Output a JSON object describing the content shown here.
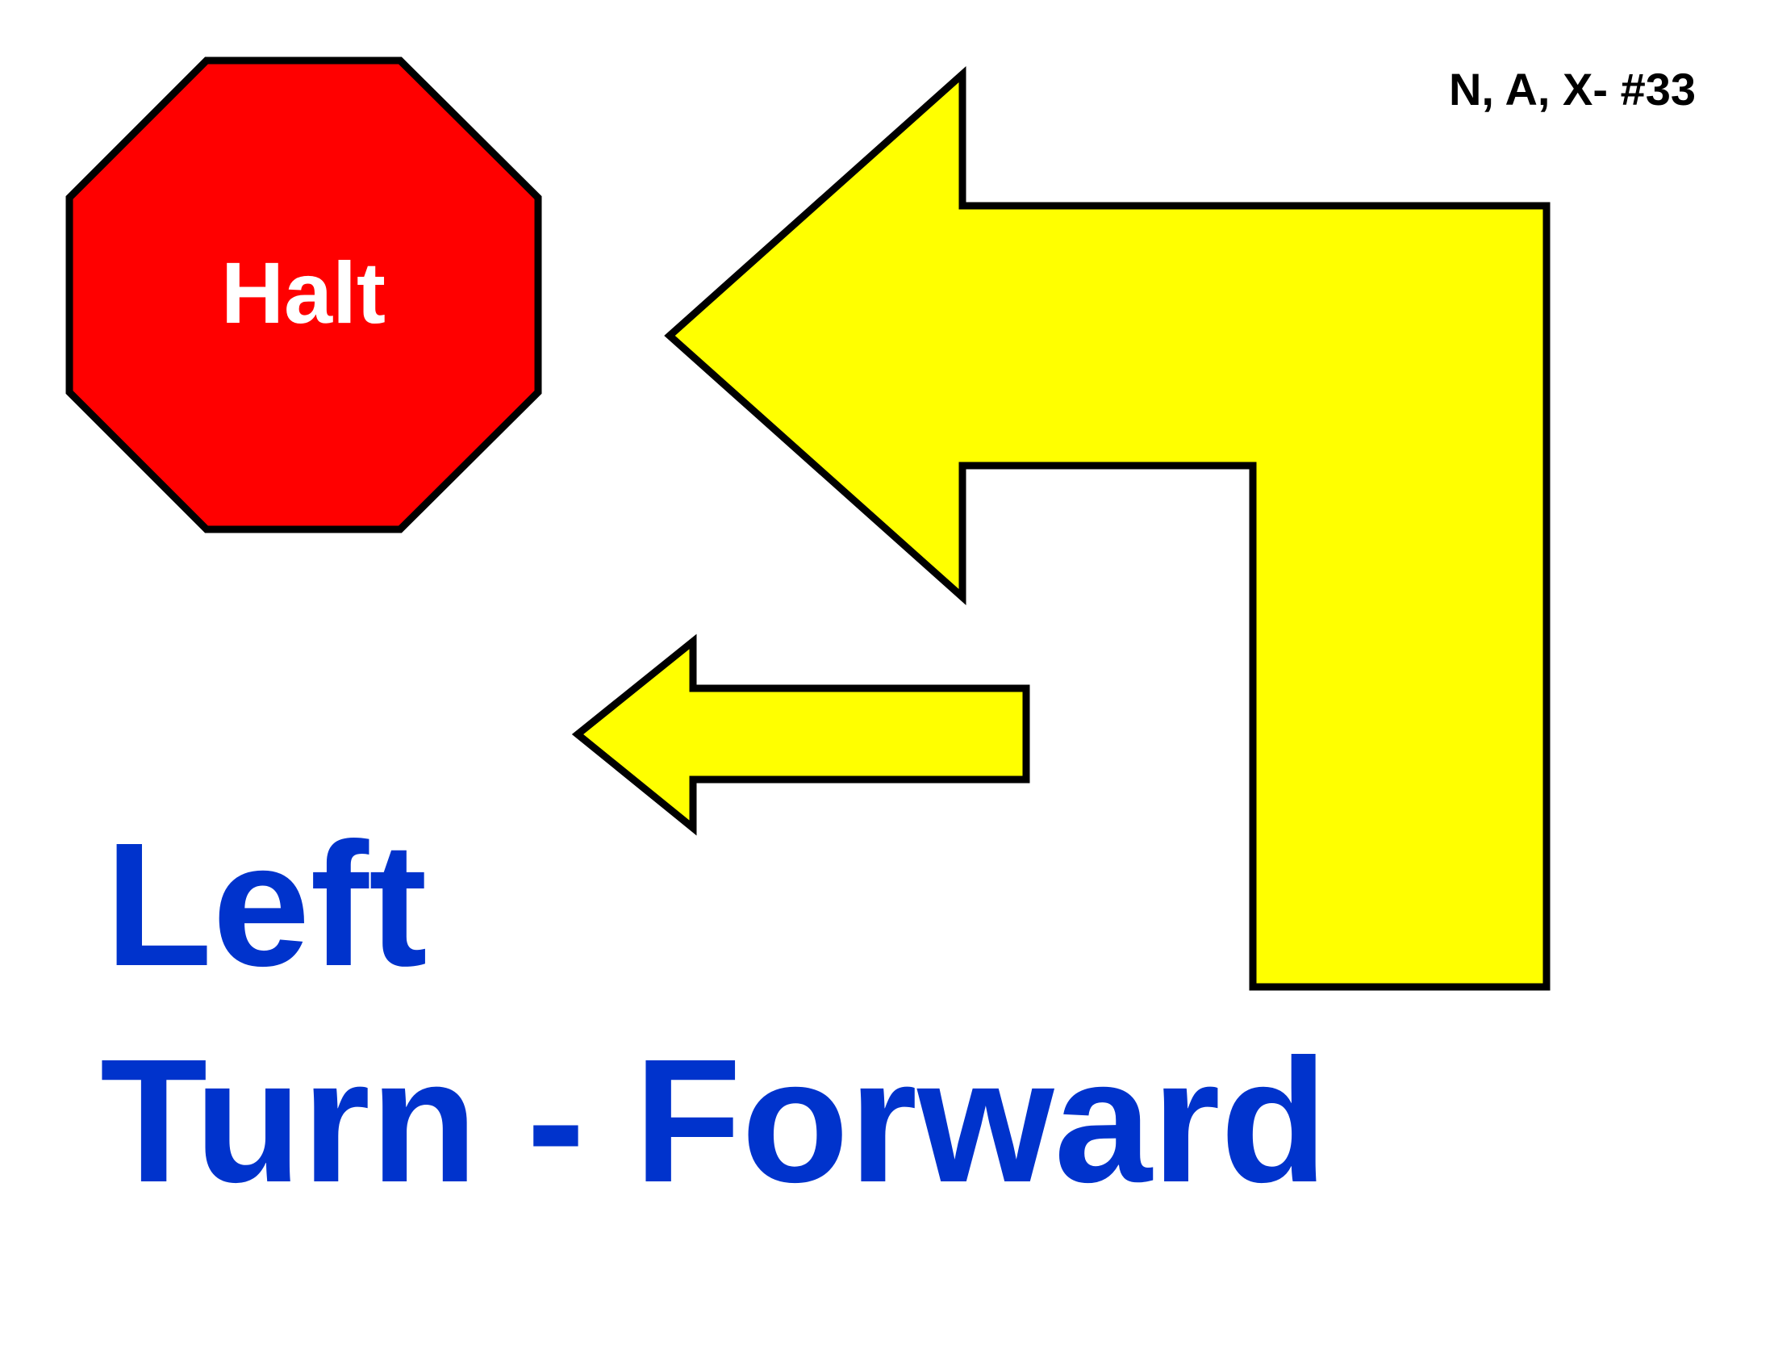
{
  "sign": {
    "code": "N, A, X- #33",
    "stop_label": "Halt",
    "title_line1": "Left",
    "title_line2": "Turn - Forward"
  },
  "colors": {
    "background": "#ffffff",
    "stop_fill": "#ff0000",
    "stop_text": "#ffffff",
    "arrow_fill": "#ffff00",
    "outline": "#000000",
    "title_text": "#0033cc",
    "code_text": "#000000"
  },
  "icons": {
    "stop": "octagon-stop-icon",
    "turn_arrow": "left-turn-arrow-icon",
    "forward_arrow": "left-arrow-icon"
  }
}
